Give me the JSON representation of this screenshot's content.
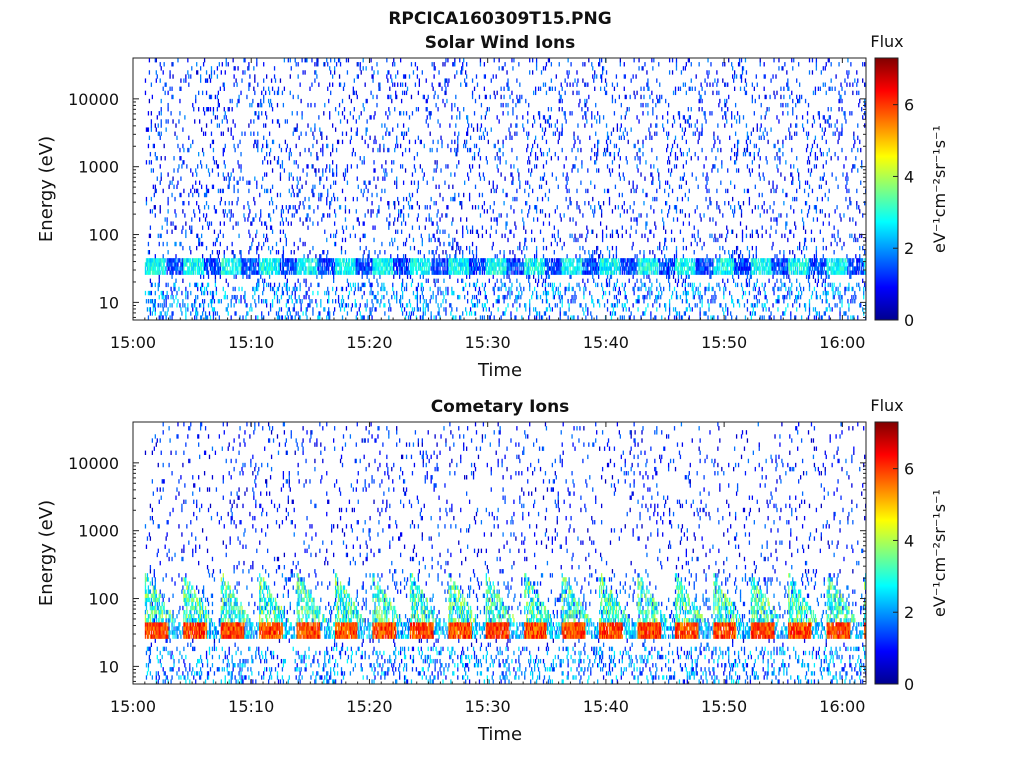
{
  "figure_title": "RPCICA160309T15.PNG",
  "chart_data": [
    {
      "type": "heatmap",
      "title": "Solar Wind Ions",
      "xlabel": "Time",
      "ylabel": "Energy (eV)",
      "x_range": [
        "15:00",
        "16:02"
      ],
      "x_ticks": [
        "15:00",
        "15:10",
        "15:20",
        "15:30",
        "15:40",
        "15:50",
        "16:00"
      ],
      "y_scale": "log",
      "y_range": [
        5.5,
        40000
      ],
      "y_ticks": [
        10,
        100,
        1000,
        10000
      ],
      "y_tick_labels": [
        "10",
        "100",
        "1000",
        "10000"
      ],
      "colorbar": {
        "title": "Flux",
        "unit_label": "eV⁻¹cm⁻²sr⁻¹s⁻¹",
        "range": [
          0,
          7.3
        ],
        "ticks": [
          0,
          2,
          4,
          6
        ],
        "tick_labels": [
          "0",
          "2",
          "4",
          "6"
        ],
        "colormap": "jet"
      },
      "data_start": "15:01",
      "data_end": "16:02",
      "features": {
        "main_band_energy_eV": [
          25,
          45
        ],
        "main_band_flux": 2.8,
        "sweep_period_min": 3.2,
        "background_sparse_flux": 1.0
      }
    },
    {
      "type": "heatmap",
      "title": "Cometary Ions",
      "xlabel": "Time",
      "ylabel": "Energy (eV)",
      "x_range": [
        "15:00",
        "16:02"
      ],
      "x_ticks": [
        "15:00",
        "15:10",
        "15:20",
        "15:30",
        "15:40",
        "15:50",
        "16:00"
      ],
      "y_scale": "log",
      "y_range": [
        5.5,
        40000
      ],
      "y_ticks": [
        10,
        100,
        1000,
        10000
      ],
      "y_tick_labels": [
        "10",
        "100",
        "1000",
        "10000"
      ],
      "colorbar": {
        "title": "Flux",
        "unit_label": "eV⁻¹cm⁻²sr⁻¹s⁻¹",
        "range": [
          0,
          7.3
        ],
        "ticks": [
          0,
          2,
          4,
          6
        ],
        "tick_labels": [
          "0",
          "2",
          "4",
          "6"
        ],
        "colormap": "jet"
      },
      "data_start": "15:01",
      "data_end": "16:02",
      "features": {
        "main_band_energy_eV": [
          25,
          42
        ],
        "main_band_flux": 5.7,
        "burst_period_min": 3.2,
        "burst_max_energy_eV": 250,
        "background_sparse_flux": 1.0
      }
    }
  ]
}
